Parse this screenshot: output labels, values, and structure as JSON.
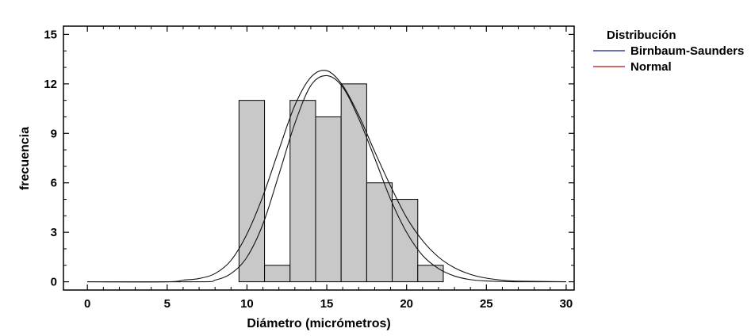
{
  "chart_data": {
    "type": "bar",
    "xlabel": "Diámetro (micrómetros)",
    "ylabel": "frecuencia",
    "xlim": [
      -1.5,
      30.5
    ],
    "ylim": [
      -0.5,
      15.5
    ],
    "xticks": [
      0,
      5,
      10,
      15,
      20,
      25,
      30
    ],
    "yticks": [
      0,
      3,
      6,
      9,
      12,
      15
    ],
    "grid": false,
    "legend_position": "right",
    "bins": [
      {
        "start": 9.5,
        "end": 11.1,
        "count": 11
      },
      {
        "start": 11.1,
        "end": 12.7,
        "count": 1
      },
      {
        "start": 12.7,
        "end": 14.3,
        "count": 11
      },
      {
        "start": 14.3,
        "end": 15.9,
        "count": 10
      },
      {
        "start": 15.9,
        "end": 17.5,
        "count": 12
      },
      {
        "start": 17.5,
        "end": 19.1,
        "count": 6
      },
      {
        "start": 19.1,
        "end": 20.7,
        "count": 5
      },
      {
        "start": 20.7,
        "end": 22.3,
        "count": 1
      }
    ],
    "bar_color": "#c8c8c8",
    "legend": {
      "title": "Distribución",
      "entries": [
        {
          "name": "Birnbaum-Saunders",
          "color": "#1a1a8c"
        },
        {
          "name": "Normal",
          "color": "#b01010"
        }
      ]
    },
    "series": [
      {
        "name": "Birnbaum-Saunders",
        "type": "curve",
        "x": [
          0,
          5,
          6,
          7,
          8,
          9,
          10,
          11,
          12,
          13,
          14,
          15,
          16,
          17,
          18,
          19,
          20,
          21,
          22,
          23,
          24,
          25,
          26,
          27,
          30
        ],
        "y": [
          0,
          0,
          0.1,
          0.2,
          0.5,
          1.3,
          2.9,
          5.2,
          8.0,
          10.7,
          12.4,
          12.8,
          11.9,
          10.1,
          7.9,
          5.8,
          3.9,
          2.5,
          1.5,
          0.85,
          0.45,
          0.22,
          0.1,
          0.04,
          0
        ]
      },
      {
        "name": "Normal",
        "type": "curve",
        "x": [
          0,
          7,
          8,
          9,
          10,
          11,
          12,
          13,
          14,
          15,
          16,
          17,
          18,
          19,
          20,
          21,
          22,
          23,
          24,
          25,
          26,
          27,
          30
        ],
        "y": [
          0,
          0,
          0.1,
          0.5,
          1.5,
          3.5,
          6.5,
          9.6,
          11.9,
          12.5,
          11.8,
          9.9,
          7.5,
          5.0,
          3.0,
          1.6,
          0.8,
          0.35,
          0.13,
          0.05,
          0.02,
          0,
          0
        ]
      }
    ]
  }
}
